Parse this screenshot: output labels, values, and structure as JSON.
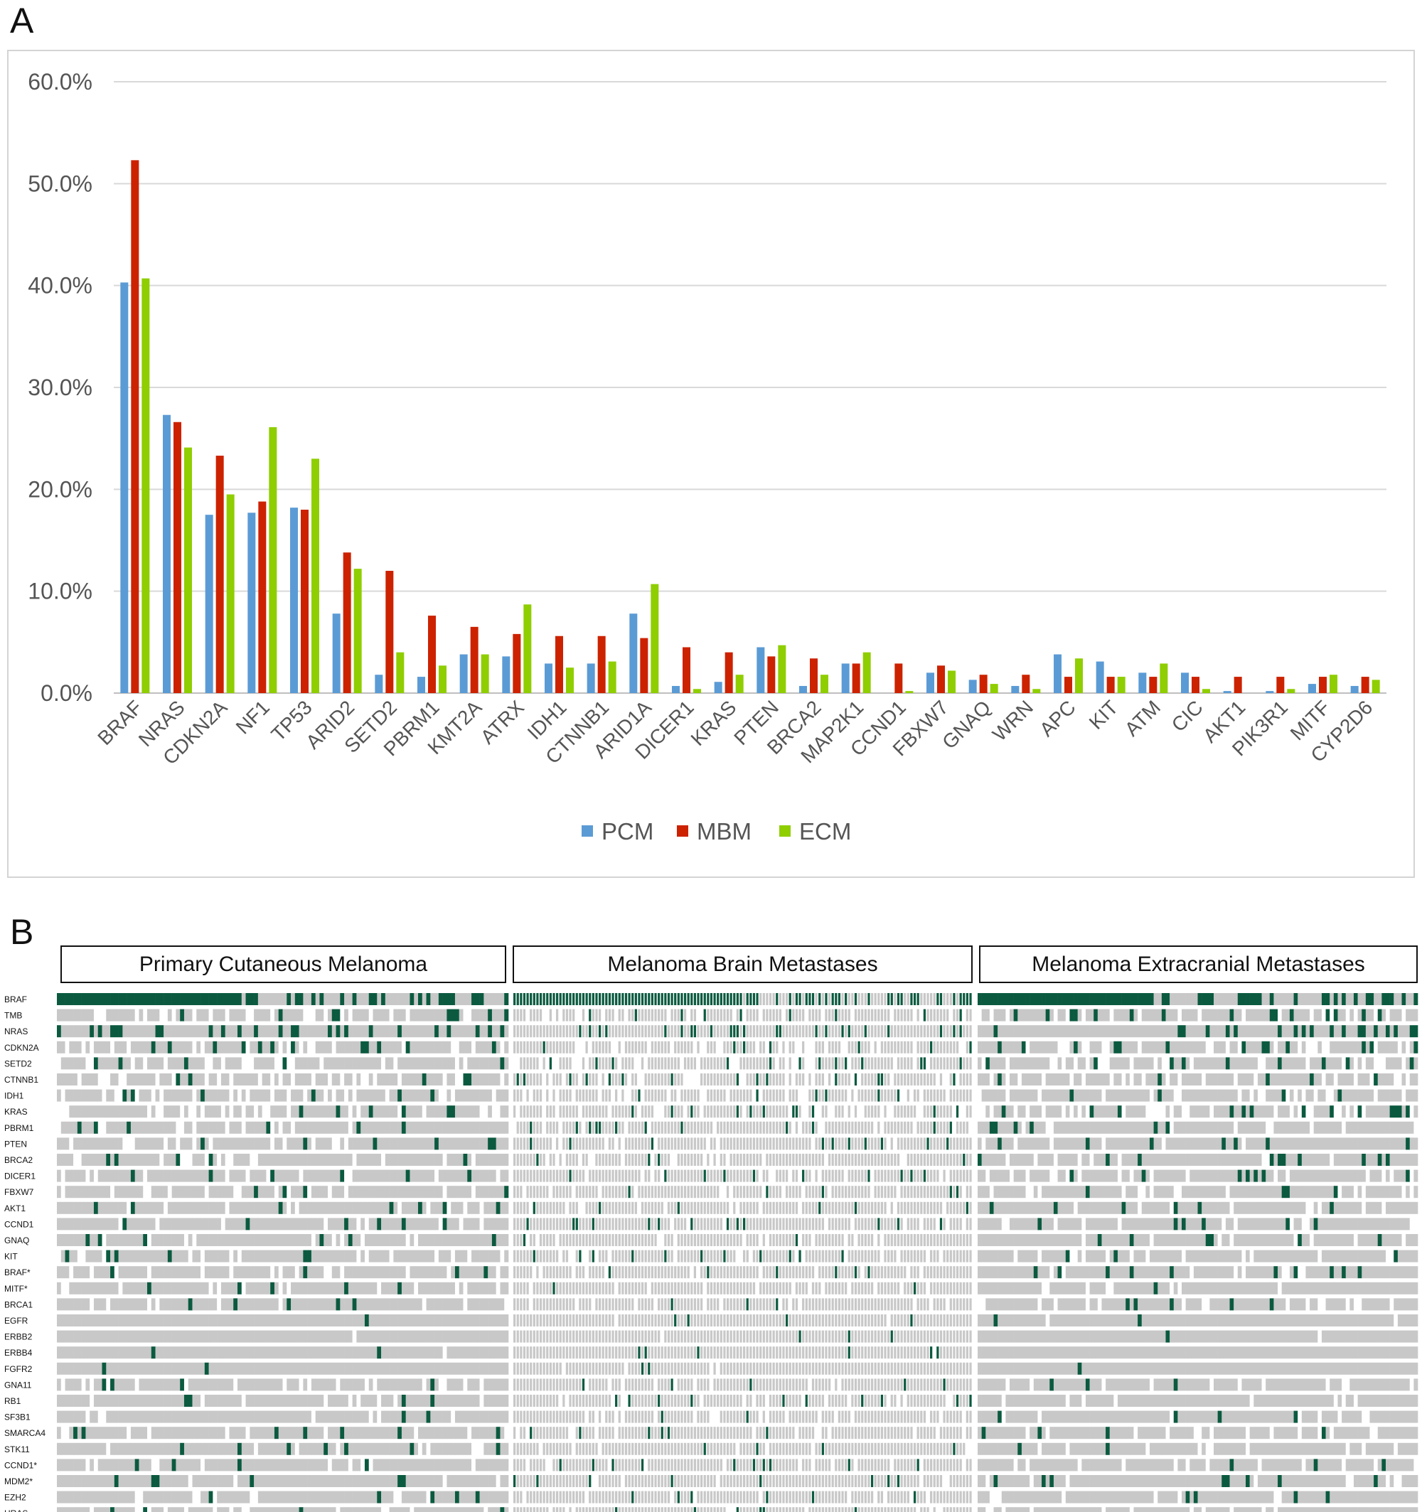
{
  "panels": {
    "a_label": "A",
    "b_label": "B"
  },
  "chart_data": [
    {
      "type": "bar",
      "categories": [
        "BRAF",
        "NRAS",
        "CDKN2A",
        "NF1",
        "TP53",
        "ARID2",
        "SETD2",
        "PBRM1",
        "KMT2A",
        "ATRX",
        "IDH1",
        "CTNNB1",
        "ARID1A",
        "DICER1",
        "KRAS",
        "PTEN",
        "BRCA2",
        "MAP2K1",
        "CCND1",
        "FBXW7",
        "GNAQ",
        "WRN",
        "APC",
        "KIT",
        "ATM",
        "CIC",
        "AKT1",
        "PIK3R1",
        "MITF",
        "CYP2D6"
      ],
      "series": [
        {
          "name": "PCM",
          "color": "#5b9bd5",
          "values": [
            40.3,
            27.3,
            17.5,
            17.7,
            18.2,
            7.8,
            1.8,
            1.6,
            3.8,
            3.6,
            2.9,
            2.9,
            7.8,
            0.7,
            1.1,
            4.5,
            0.7,
            2.9,
            0.0,
            2.0,
            1.3,
            0.7,
            3.8,
            3.1,
            2.0,
            2.0,
            0.2,
            0.2,
            0.9,
            0.7
          ]
        },
        {
          "name": "MBM",
          "color": "#cc2200",
          "values": [
            52.3,
            26.6,
            23.3,
            18.8,
            18.0,
            13.8,
            12.0,
            7.6,
            6.5,
            5.8,
            5.6,
            5.6,
            5.4,
            4.5,
            4.0,
            3.6,
            3.4,
            2.9,
            2.9,
            2.7,
            1.8,
            1.8,
            1.6,
            1.6,
            1.6,
            1.6,
            1.6,
            1.6,
            1.6,
            1.6
          ]
        },
        {
          "name": "ECM",
          "color": "#8fce00",
          "values": [
            40.7,
            24.1,
            19.5,
            26.1,
            23.0,
            12.2,
            4.0,
            2.7,
            3.8,
            8.7,
            2.5,
            3.1,
            10.7,
            0.4,
            1.8,
            4.7,
            1.8,
            4.0,
            0.2,
            2.2,
            0.9,
            0.4,
            3.4,
            1.6,
            2.9,
            0.4,
            0.0,
            0.4,
            1.8,
            1.3
          ]
        }
      ],
      "y_ticks": [
        "0.0%",
        "10.0%",
        "20.0%",
        "30.0%",
        "40.0%",
        "50.0%",
        "60.0%"
      ],
      "ylim": [
        0,
        60
      ],
      "grid": true,
      "legend": "bottom-center",
      "xlabel": "",
      "ylabel": ""
    },
    {
      "type": "heatmap",
      "groups": [
        {
          "title": "Primary Cutaneous Melanoma",
          "color": "#8ab4ef",
          "border": "#3a70b8",
          "samples": 110
        },
        {
          "title": "Melanoma Brain Metastases",
          "color": "#f19a9a",
          "border": "#c23a3a",
          "samples": 140
        },
        {
          "title": "Melanoma Extracranial Metastases",
          "color": "#c9ee8a",
          "border": "#6ea825",
          "samples": 110
        }
      ],
      "rows": [
        "BRAF",
        "TMB",
        "NRAS",
        "CDKN2A",
        "SETD2",
        "CTNNB1",
        "IDH1",
        "KRAS",
        "PBRM1",
        "PTEN",
        "BRCA2",
        "DICER1",
        "FBXW7",
        "AKT1",
        "CCND1",
        "GNAQ",
        "KIT",
        "BRAF*",
        "MITF*",
        "BRCA1",
        "EGFR",
        "ERBB2",
        "ERBB4",
        "FGFR2",
        "GNA11",
        "RB1",
        "SF3B1",
        "SMARCA4",
        "STK11",
        "CCND1*",
        "MDM2*",
        "EZH2",
        "HRAS"
      ],
      "colors": {
        "altered": "#0b5a40",
        "tested": "#c8c8c8",
        "not_tested": "#ffffff"
      }
    }
  ]
}
